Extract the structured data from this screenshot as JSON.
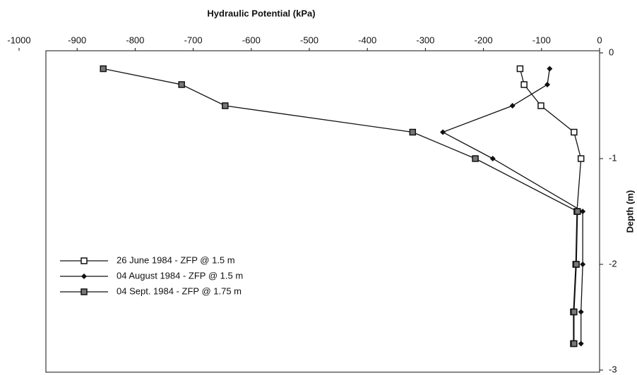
{
  "chart_data": {
    "type": "line",
    "title": "Hydraulic Potential (kPa)",
    "y_label": "Depth (m)",
    "xlim": [
      -1000,
      0
    ],
    "xticks": [
      -1000,
      -900,
      -800,
      -700,
      -600,
      -500,
      -400,
      -300,
      -200,
      -100,
      0
    ],
    "ylim": [
      -3,
      0
    ],
    "yticks": [
      0,
      -1,
      -2,
      -3
    ],
    "legend": "lower left",
    "series": [
      {
        "name": "26 June 1984 - ZFP @ 1.5 m",
        "color": "#111111",
        "marker": "square-open",
        "x": [
          -137,
          -130,
          -101,
          -44,
          -32,
          -39,
          -41,
          -45,
          -45
        ],
        "values": [
          -0.15,
          -0.3,
          -0.5,
          -0.75,
          -1.0,
          -1.5,
          -2.0,
          -2.45,
          -2.75
        ]
      },
      {
        "name": "04 August 1984 - ZFP @ 1.5 m",
        "color": "#111111",
        "marker": "diamond",
        "x": [
          -86,
          -90,
          -150,
          -270,
          -184,
          -29,
          -29,
          -32,
          -32
        ],
        "values": [
          -0.15,
          -0.3,
          -0.5,
          -0.75,
          -1.0,
          -1.5,
          -2.0,
          -2.45,
          -2.75
        ]
      },
      {
        "name": "04 Sept. 1984 - ZFP @ 1.75 m",
        "color": "#111111",
        "marker": "square-filled",
        "x": [
          -855,
          -720,
          -645,
          -322,
          -214,
          -38,
          -40,
          -44,
          -44
        ],
        "values": [
          -0.15,
          -0.3,
          -0.5,
          -0.75,
          -1.0,
          -1.5,
          -2.0,
          -2.45,
          -2.75
        ]
      }
    ]
  }
}
